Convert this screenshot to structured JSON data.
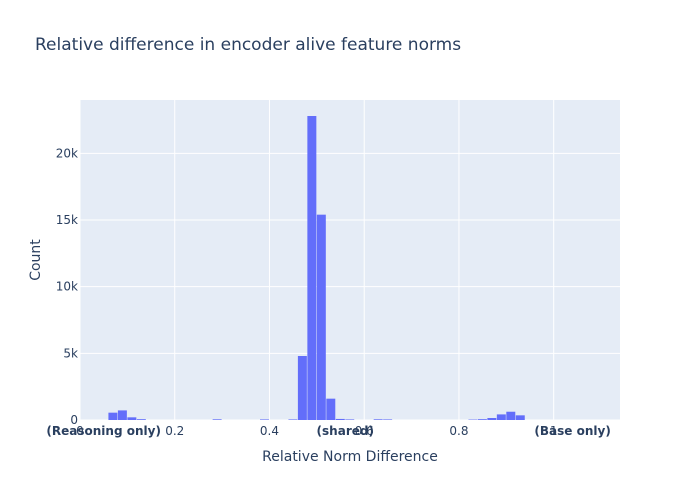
{
  "chart_data": {
    "type": "bar",
    "title": "Relative difference in encoder alive feature norms",
    "xlabel": "Relative Norm Difference",
    "ylabel": "Count",
    "xlim": [
      0,
      1.14
    ],
    "ylim": [
      0,
      24000
    ],
    "grid": true,
    "legend": "none",
    "bar_color": "#636efa",
    "plot_bg": "#e5ecf6",
    "xticks": [
      {
        "value": 0,
        "label": "0"
      },
      {
        "value": 0.2,
        "label": "0.2"
      },
      {
        "value": 0.4,
        "label": "0.4"
      },
      {
        "value": 0.6,
        "label": "0.6"
      },
      {
        "value": 0.8,
        "label": "0.8"
      },
      {
        "value": 1,
        "label": "1"
      }
    ],
    "yticks": [
      {
        "value": 0,
        "label": "0"
      },
      {
        "value": 5000,
        "label": "5k"
      },
      {
        "value": 10000,
        "label": "10k"
      },
      {
        "value": 15000,
        "label": "15k"
      },
      {
        "value": 20000,
        "label": "20k"
      }
    ],
    "bin_width": 0.02,
    "bins": [
      {
        "x": 0.06,
        "count": 550
      },
      {
        "x": 0.08,
        "count": 720
      },
      {
        "x": 0.1,
        "count": 200
      },
      {
        "x": 0.12,
        "count": 60
      },
      {
        "x": 0.28,
        "count": 50
      },
      {
        "x": 0.38,
        "count": 40
      },
      {
        "x": 0.44,
        "count": 40
      },
      {
        "x": 0.46,
        "count": 4800
      },
      {
        "x": 0.48,
        "count": 22800
      },
      {
        "x": 0.5,
        "count": 15400
      },
      {
        "x": 0.52,
        "count": 1600
      },
      {
        "x": 0.54,
        "count": 80
      },
      {
        "x": 0.56,
        "count": 40
      },
      {
        "x": 0.62,
        "count": 50
      },
      {
        "x": 0.64,
        "count": 40
      },
      {
        "x": 0.82,
        "count": 30
      },
      {
        "x": 0.84,
        "count": 60
      },
      {
        "x": 0.86,
        "count": 150
      },
      {
        "x": 0.88,
        "count": 420
      },
      {
        "x": 0.9,
        "count": 620
      },
      {
        "x": 0.92,
        "count": 350
      }
    ],
    "annotations": [
      {
        "x": 0.05,
        "text": "(Reasoning only)"
      },
      {
        "x": 0.56,
        "text": "(shared)"
      },
      {
        "x": 1.04,
        "text": "(Base only)"
      }
    ]
  }
}
